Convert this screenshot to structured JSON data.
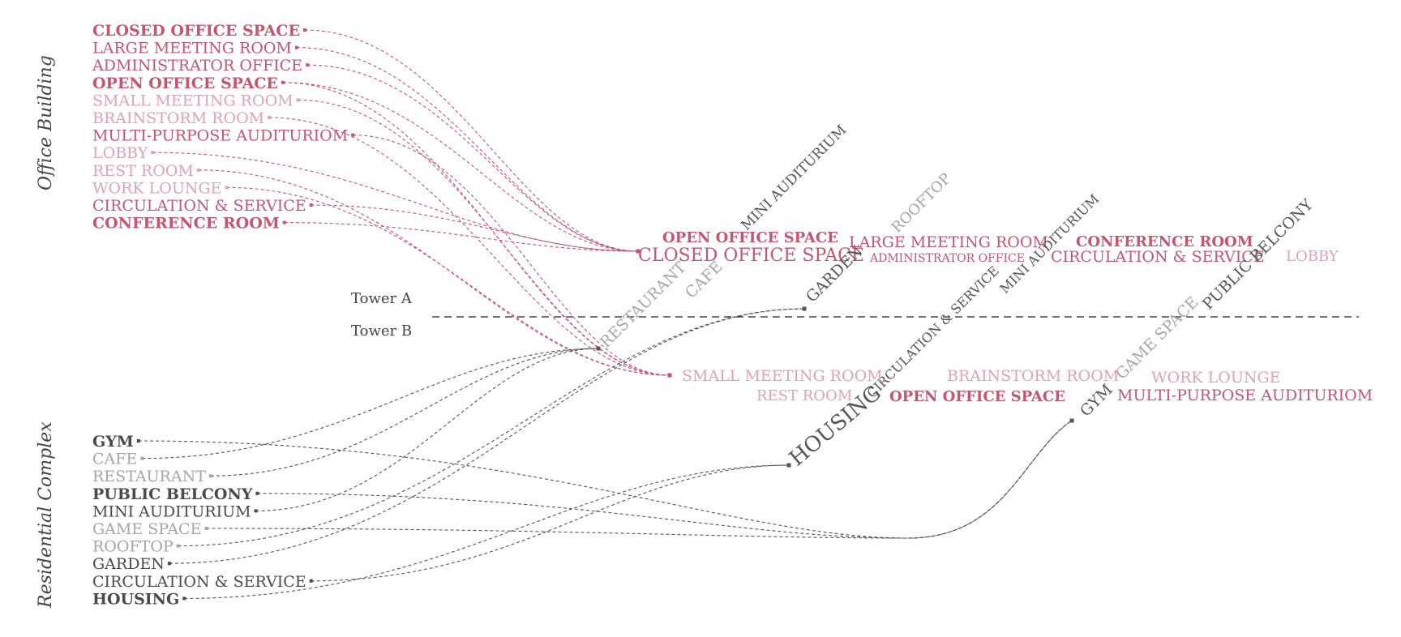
{
  "colors": {
    "office_dark": "#c4566e",
    "office_light": "#e0a3b1",
    "res_dark": "#4a4a4a",
    "res_light": "#a6a6a6",
    "office_link": "#c4566e",
    "res_link": "#555555",
    "divider": "#222222"
  },
  "groups": {
    "office": "Office Building",
    "residential": "Residential Complex"
  },
  "towers": {
    "a": "Tower A",
    "b": "Tower B"
  },
  "office_items": [
    {
      "label": "CLOSED OFFICE SPACE",
      "tone": "dark",
      "bold": true
    },
    {
      "label": "LARGE MEETING ROOM",
      "tone": "dark",
      "bold": false
    },
    {
      "label": "ADMINISTRATOR OFFICE",
      "tone": "dark",
      "bold": false
    },
    {
      "label": "OPEN OFFICE SPACE",
      "tone": "dark",
      "bold": true
    },
    {
      "label": "SMALL MEETING ROOM",
      "tone": "light",
      "bold": false
    },
    {
      "label": "BRAINSTORM ROOM",
      "tone": "light",
      "bold": false
    },
    {
      "label": "MULTI-PURPOSE AUDITURIOM",
      "tone": "dark",
      "bold": false
    },
    {
      "label": "LOBBY",
      "tone": "light",
      "bold": false
    },
    {
      "label": "REST ROOM",
      "tone": "light",
      "bold": false
    },
    {
      "label": "WORK LOUNGE",
      "tone": "light",
      "bold": false
    },
    {
      "label": "CIRCULATION & SERVICE",
      "tone": "dark",
      "bold": false
    },
    {
      "label": "CONFERENCE ROOM",
      "tone": "dark",
      "bold": true
    }
  ],
  "residential_items": [
    {
      "label": "GYM",
      "tone": "dark",
      "bold": true
    },
    {
      "label": "CAFE",
      "tone": "light",
      "bold": false
    },
    {
      "label": "RESTAURANT",
      "tone": "light",
      "bold": false
    },
    {
      "label": "PUBLIC BELCONY",
      "tone": "dark",
      "bold": true
    },
    {
      "label": "MINI AUDITURIUM",
      "tone": "dark",
      "bold": false
    },
    {
      "label": "GAME SPACE",
      "tone": "light",
      "bold": false
    },
    {
      "label": "ROOFTOP",
      "tone": "light",
      "bold": false
    },
    {
      "label": "GARDEN",
      "tone": "dark",
      "bold": false
    },
    {
      "label": "CIRCULATION & SERVICE",
      "tone": "dark",
      "bold": false
    },
    {
      "label": "HOUSING",
      "tone": "dark",
      "bold": true
    }
  ],
  "tower_a_labels": [
    {
      "text": "OPEN OFFICE SPACE",
      "color": "#c4566e",
      "bold": true
    },
    {
      "text": "CLOSED OFFICE SPACE",
      "color": "#c4566e",
      "bold": false
    },
    {
      "text": "LARGE MEETING ROOM",
      "color": "#c4566e",
      "bold": false
    },
    {
      "text": "ADMINISTRATOR OFFICE",
      "color": "#c4566e",
      "bold": false
    },
    {
      "text": "CONFERENCE ROOM",
      "color": "#c4566e",
      "bold": true
    },
    {
      "text": "CIRCULATION & SERVICE",
      "color": "#c4566e",
      "bold": false
    },
    {
      "text": "LOBBY",
      "color": "#e0a3b1",
      "bold": false
    },
    {
      "text": "MINI AUDITURIUM",
      "color": "#555555",
      "bold": false
    },
    {
      "text": "CAFE",
      "color": "#a6a6a6",
      "bold": false
    },
    {
      "text": "RESTAURANT",
      "color": "#a6a6a6",
      "bold": false
    },
    {
      "text": "ROOFTOP",
      "color": "#a6a6a6",
      "bold": false
    },
    {
      "text": "GARDEN",
      "color": "#555555",
      "bold": false
    },
    {
      "text": "MINI AUDITURIUM",
      "color": "#555555",
      "bold": false
    },
    {
      "text": "CIRCULATION & SERVICE",
      "color": "#555555",
      "bold": false
    },
    {
      "text": "PUBLIC BELCONY",
      "color": "#555555",
      "bold": false
    },
    {
      "text": "GAME SPACE",
      "color": "#a6a6a6",
      "bold": false
    }
  ],
  "tower_b_labels": [
    {
      "text": "SMALL MEETING ROOM",
      "color": "#e0a3b1",
      "bold": false
    },
    {
      "text": "REST ROOM",
      "color": "#e0a3b1",
      "bold": false
    },
    {
      "text": "HOUSING",
      "color": "#555555",
      "bold": false
    },
    {
      "text": "BRAINSTORM ROOM",
      "color": "#e0a3b1",
      "bold": false
    },
    {
      "text": "OPEN OFFICE SPACE",
      "color": "#c4566e",
      "bold": true
    },
    {
      "text": "WORK LOUNGE",
      "color": "#e0a3b1",
      "bold": false
    },
    {
      "text": "MULTI-PURPOSE AUDITURIOM",
      "color": "#c4566e",
      "bold": false
    },
    {
      "text": "GYM",
      "color": "#555555",
      "bold": false
    }
  ],
  "office_links": [
    {
      "from": 0,
      "to": "tower_a_office"
    },
    {
      "from": 1,
      "to": "tower_a_office"
    },
    {
      "from": 2,
      "to": "tower_a_office"
    },
    {
      "from": 3,
      "to": "tower_a_office"
    },
    {
      "from": 7,
      "to": "tower_a_office"
    },
    {
      "from": 10,
      "to": "tower_a_office"
    },
    {
      "from": 11,
      "to": "tower_a_office"
    },
    {
      "from": 3,
      "to": "tower_b_office"
    },
    {
      "from": 4,
      "to": "tower_b_office"
    },
    {
      "from": 5,
      "to": "tower_b_office"
    },
    {
      "from": 6,
      "to": "tower_b_office"
    },
    {
      "from": 8,
      "to": "tower_b_office"
    },
    {
      "from": 9,
      "to": "tower_b_office"
    }
  ],
  "residential_links": [
    {
      "from": 1,
      "to": "tower_a_restaurant"
    },
    {
      "from": 2,
      "to": "tower_a_restaurant"
    },
    {
      "from": 4,
      "to": "tower_a_restaurant"
    },
    {
      "from": 6,
      "to": "tower_a_garden"
    },
    {
      "from": 7,
      "to": "tower_a_garden"
    },
    {
      "from": 8,
      "to": "tower_b_housing"
    },
    {
      "from": 9,
      "to": "tower_b_housing"
    },
    {
      "from": 0,
      "to": "tower_b_gym"
    },
    {
      "from": 3,
      "to": "tower_b_gym"
    },
    {
      "from": 5,
      "to": "tower_b_gym"
    }
  ]
}
